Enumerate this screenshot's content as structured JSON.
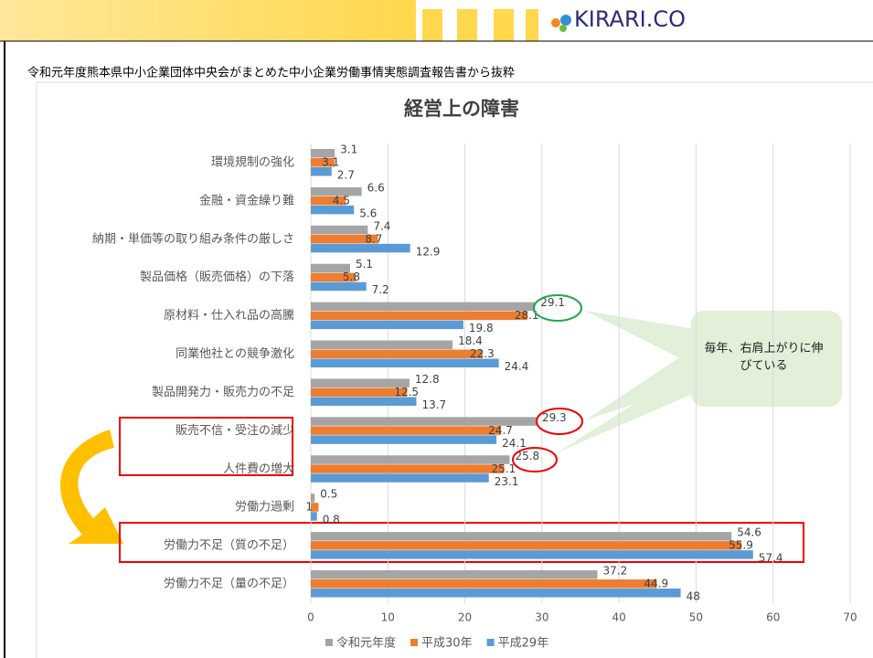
{
  "logo": "KIRARI.CO",
  "source_note": "令和元年度熊本県中小企業団体中央会がまとめた中小企業労働事情実態調査報告書から抜粋",
  "callout": "毎年、右肩上がりに伸びている",
  "chart_data": {
    "type": "hbar",
    "title": "経営上の障害",
    "categories": [
      "環境規制の強化",
      "金融・資金繰り難",
      "納期・単価等の取り組み条件の厳しさ",
      "製品価格（販売価格）の下落",
      "原材料・仕入れ品の高騰",
      "同業他社との競争激化",
      "製品開発力・販売力の不足",
      "販売不信・受注の減少",
      "人件費の増大",
      "労働力過剰",
      "労働力不足（質の不足）",
      "労働力不足（量の不足）"
    ],
    "series": [
      {
        "name": "令和元年度",
        "color": "#a5a5a5",
        "values": [
          3.1,
          6.6,
          7.4,
          5.1,
          29.1,
          18.4,
          12.8,
          29.3,
          25.8,
          0.5,
          54.6,
          37.2
        ]
      },
      {
        "name": "平成30年",
        "color": "#ed7d31",
        "values": [
          3.1,
          4.5,
          8.7,
          5.8,
          28.1,
          22.3,
          12.5,
          24.7,
          25.1,
          1,
          55.9,
          44.9
        ]
      },
      {
        "name": "平成29年",
        "color": "#5b9bd5",
        "values": [
          2.7,
          5.6,
          12.9,
          7.2,
          19.8,
          24.4,
          13.7,
          24.1,
          23.1,
          0.8,
          57.4,
          48
        ]
      }
    ],
    "xlim": [
      0,
      70
    ],
    "xticks": [
      0,
      10,
      20,
      30,
      40,
      50,
      60,
      70
    ],
    "grid": true,
    "legend": "bottom"
  }
}
